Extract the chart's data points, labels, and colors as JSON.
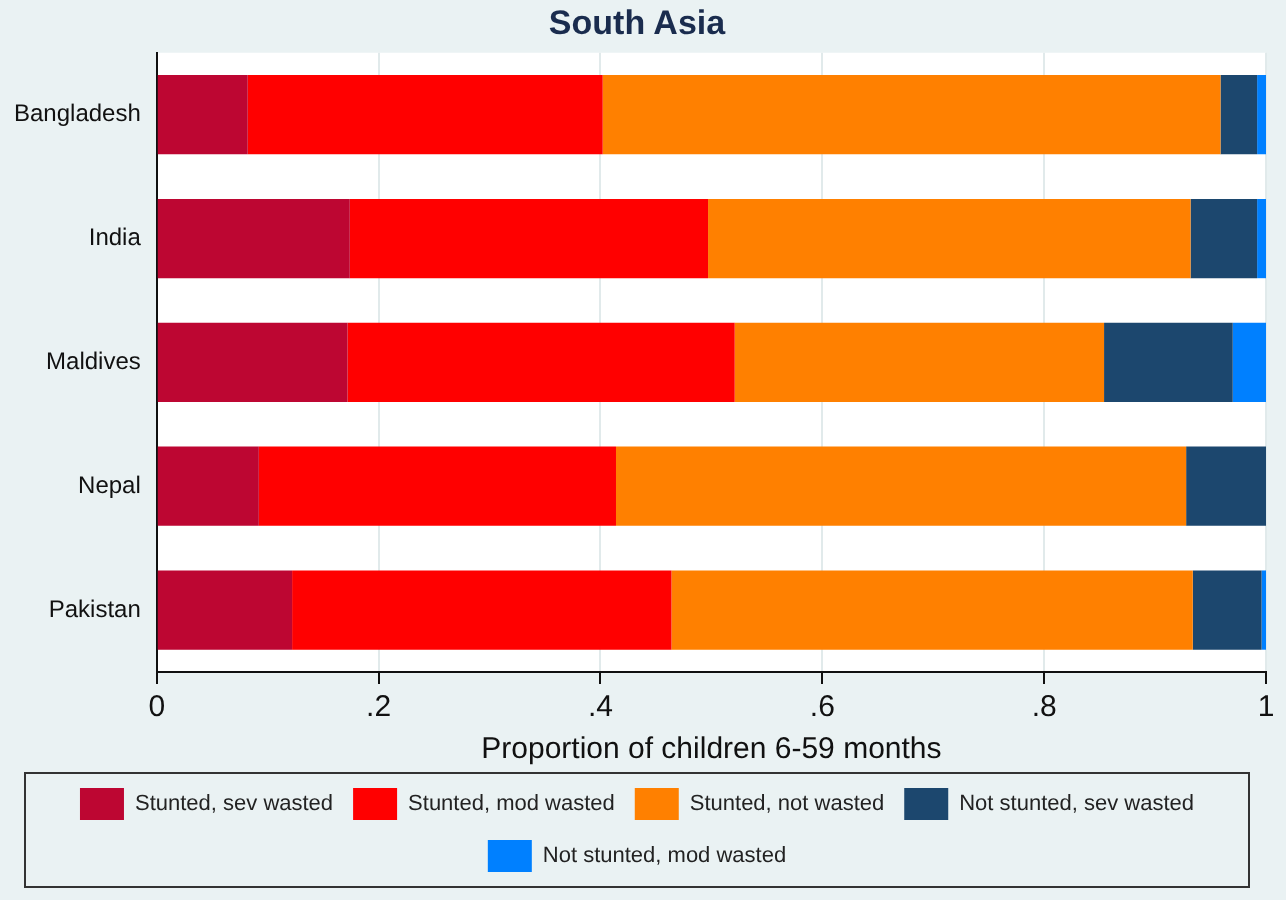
{
  "chart_data": {
    "type": "bar",
    "orientation": "horizontal",
    "stacked": true,
    "title": "South Asia",
    "xlabel": "Proportion of children 6-59 months",
    "categories": [
      "Bangladesh",
      "India",
      "Maldives",
      "Nepal",
      "Pakistan"
    ],
    "series": [
      {
        "name": "Stunted, sev wasted",
        "color": "#bd0632",
        "values": [
          0.082,
          0.174,
          0.172,
          0.092,
          0.122
        ]
      },
      {
        "name": "Stunted, mod wasted",
        "color": "#ff0000",
        "values": [
          0.32,
          0.323,
          0.349,
          0.322,
          0.342
        ]
      },
      {
        "name": "Stunted, not wasted",
        "color": "#ff8000",
        "values": [
          0.557,
          0.435,
          0.333,
          0.514,
          0.47
        ]
      },
      {
        "name": "Not stunted, sev wasted",
        "color": "#1c476e",
        "values": [
          0.033,
          0.06,
          0.116,
          0.072,
          0.062
        ]
      },
      {
        "name": "Not stunted, mod wasted",
        "color": "#0080ff",
        "values": [
          0.008,
          0.008,
          0.03,
          0,
          0.004
        ]
      }
    ],
    "xlim": [
      0,
      1
    ],
    "xticks": [
      {
        "value": 0,
        "label": "0"
      },
      {
        "value": 0.2,
        "label": ".2"
      },
      {
        "value": 0.4,
        "label": ".4"
      },
      {
        "value": 0.6,
        "label": ".6"
      },
      {
        "value": 0.8,
        "label": ".8"
      },
      {
        "value": 1,
        "label": "1"
      }
    ],
    "grid": "x",
    "legend": "bottom"
  }
}
